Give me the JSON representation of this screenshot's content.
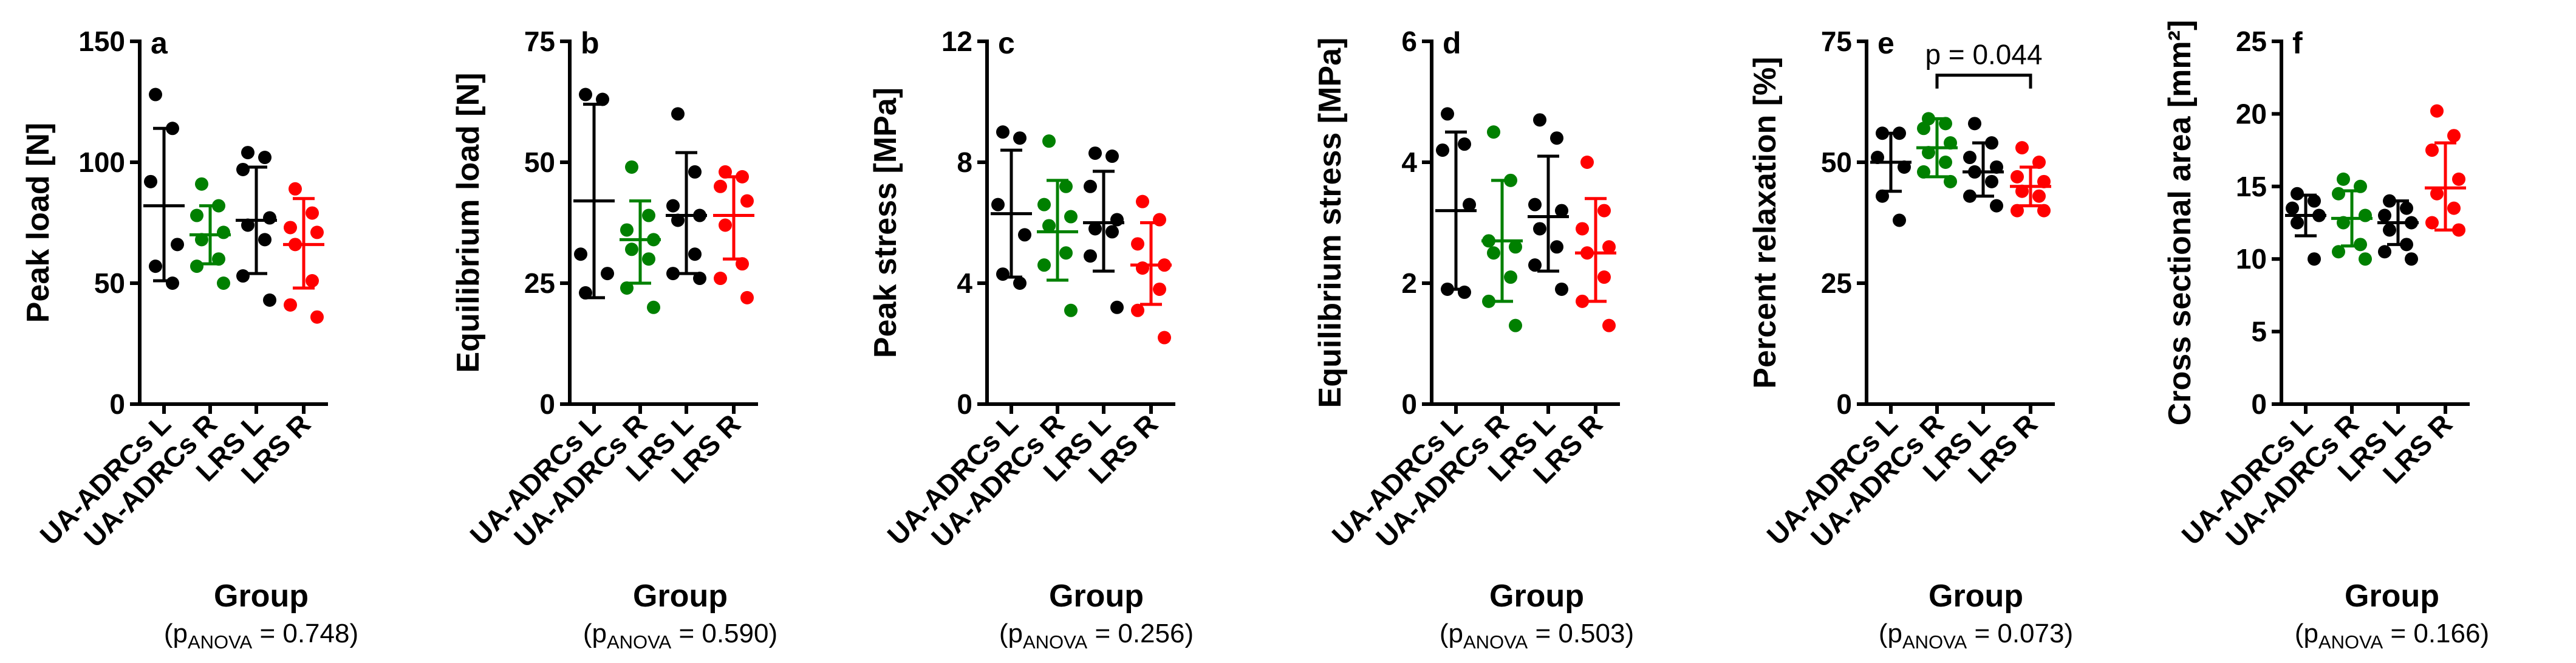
{
  "figure": {
    "group_xlabel": "Group",
    "anova_prefix": "(p",
    "anova_sub": "ANOVA",
    "colors": {
      "ua_adrcs_l": "#000000",
      "ua_adrcs_r": "#008000",
      "lrs_l": "#000000",
      "lrs_r": "#ff0000"
    }
  },
  "chart_data": [
    {
      "panel": "a",
      "type": "scatter",
      "ylabel": "Peak load [N]",
      "ylim": [
        0,
        150
      ],
      "yticks": [
        0,
        50,
        100,
        150
      ],
      "categories": [
        "UA-ADRCs L",
        "UA-ADRCs R",
        "LRS L",
        "LRS R"
      ],
      "anova": "= 0.748)",
      "series": [
        {
          "name": "UA-ADRCs L",
          "color": "#000000",
          "points": [
            128,
            114,
            92,
            66,
            57,
            50
          ],
          "mean": 82,
          "sd_low": 51,
          "sd_high": 114
        },
        {
          "name": "UA-ADRCs R",
          "color": "#008000",
          "points": [
            91,
            82,
            78,
            71,
            68,
            60,
            57,
            50
          ],
          "mean": 70,
          "sd_low": 58,
          "sd_high": 82
        },
        {
          "name": "LRS L",
          "color": "#000000",
          "points": [
            104,
            102,
            97,
            77,
            74,
            68,
            53,
            43
          ],
          "mean": 76,
          "sd_low": 54,
          "sd_high": 98
        },
        {
          "name": "LRS R",
          "color": "#ff0000",
          "points": [
            89,
            79,
            73,
            71,
            66,
            51,
            41,
            36
          ],
          "mean": 66,
          "sd_low": 48,
          "sd_high": 85
        }
      ]
    },
    {
      "panel": "b",
      "type": "scatter",
      "ylabel": "Equilibrium load [N]",
      "ylim": [
        0,
        75
      ],
      "yticks": [
        0,
        25,
        50,
        75
      ],
      "categories": [
        "UA-ADRCs L",
        "UA-ADRCs R",
        "LRS L",
        "LRS R"
      ],
      "anova": "= 0.590)",
      "series": [
        {
          "name": "UA-ADRCs L",
          "color": "#000000",
          "points": [
            64,
            63,
            31,
            27,
            23
          ],
          "mean": 42,
          "sd_low": 22,
          "sd_high": 62
        },
        {
          "name": "UA-ADRCs R",
          "color": "#008000",
          "points": [
            49,
            39,
            36,
            34,
            32,
            30,
            24,
            20
          ],
          "mean": 34,
          "sd_low": 25,
          "sd_high": 42
        },
        {
          "name": "LRS L",
          "color": "#000000",
          "points": [
            60,
            48,
            41,
            39,
            38,
            31,
            27,
            26
          ],
          "mean": 39,
          "sd_low": 27,
          "sd_high": 52
        },
        {
          "name": "LRS R",
          "color": "#ff0000",
          "points": [
            48,
            47,
            45,
            42,
            37,
            29,
            26,
            22
          ],
          "mean": 39,
          "sd_low": 30,
          "sd_high": 47
        }
      ]
    },
    {
      "panel": "c",
      "type": "scatter",
      "ylabel": "Peak stress [MPa]",
      "ylim": [
        0,
        12
      ],
      "yticks": [
        0,
        4,
        8,
        12
      ],
      "categories": [
        "UA-ADRCs L",
        "UA-ADRCs R",
        "LRS L",
        "LRS R"
      ],
      "anova": "= 0.256)",
      "series": [
        {
          "name": "UA-ADRCs L",
          "color": "#000000",
          "points": [
            9.0,
            8.8,
            6.6,
            5.6,
            4.3,
            4.0
          ],
          "mean": 6.3,
          "sd_low": 4.2,
          "sd_high": 8.4
        },
        {
          "name": "UA-ADRCs R",
          "color": "#008000",
          "points": [
            8.7,
            7.2,
            6.6,
            6.2,
            5.9,
            5.0,
            4.6,
            3.1
          ],
          "mean": 5.7,
          "sd_low": 4.1,
          "sd_high": 7.4
        },
        {
          "name": "LRS L",
          "color": "#000000",
          "points": [
            8.3,
            8.2,
            7.2,
            6.1,
            5.8,
            5.7,
            4.9,
            3.2
          ],
          "mean": 6.0,
          "sd_low": 4.4,
          "sd_high": 7.7
        },
        {
          "name": "LRS R",
          "color": "#ff0000",
          "points": [
            6.7,
            6.1,
            5.3,
            4.6,
            4.5,
            3.8,
            3.1,
            2.2
          ],
          "mean": 4.6,
          "sd_low": 3.3,
          "sd_high": 6.0
        }
      ]
    },
    {
      "panel": "d",
      "type": "scatter",
      "ylabel": "Equilibrium stress [MPa]",
      "ylim": [
        0,
        6
      ],
      "yticks": [
        0,
        2,
        4,
        6
      ],
      "categories": [
        "UA-ADRCs L",
        "UA-ADRCs R",
        "LRS L",
        "LRS R"
      ],
      "anova": "= 0.503)",
      "series": [
        {
          "name": "UA-ADRCs L",
          "color": "#000000",
          "points": [
            4.8,
            4.3,
            4.2,
            3.3,
            1.9,
            1.85
          ],
          "mean": 3.2,
          "sd_low": 1.9,
          "sd_high": 4.5
        },
        {
          "name": "UA-ADRCs R",
          "color": "#008000",
          "points": [
            4.5,
            3.7,
            2.7,
            2.6,
            2.5,
            2.1,
            1.7,
            1.3
          ],
          "mean": 2.7,
          "sd_low": 1.7,
          "sd_high": 3.7
        },
        {
          "name": "LRS L",
          "color": "#000000",
          "points": [
            4.7,
            4.4,
            3.3,
            3.2,
            2.9,
            2.6,
            2.3,
            1.9
          ],
          "mean": 3.1,
          "sd_low": 2.2,
          "sd_high": 4.1
        },
        {
          "name": "LRS R",
          "color": "#ff0000",
          "points": [
            4.0,
            3.2,
            2.9,
            2.6,
            2.5,
            2.1,
            1.7,
            1.3
          ],
          "mean": 2.5,
          "sd_low": 1.7,
          "sd_high": 3.4
        }
      ]
    },
    {
      "panel": "e",
      "type": "scatter",
      "ylabel": "Percent relaxation [%]",
      "ylim": [
        0,
        75
      ],
      "yticks": [
        0,
        25,
        50,
        75
      ],
      "categories": [
        "UA-ADRCs L",
        "UA-ADRCs R",
        "LRS L",
        "LRS R"
      ],
      "anova": "= 0.073)",
      "annotation": {
        "text": "p = 0.044",
        "from": 1,
        "to": 3,
        "y": 68
      },
      "series": [
        {
          "name": "UA-ADRCs L",
          "color": "#000000",
          "points": [
            56,
            56,
            51,
            49,
            43,
            38
          ],
          "mean": 50,
          "sd_low": 44,
          "sd_high": 56
        },
        {
          "name": "UA-ADRCs R",
          "color": "#008000",
          "points": [
            59,
            58,
            57,
            54,
            52,
            50,
            48,
            46
          ],
          "mean": 53,
          "sd_low": 47,
          "sd_high": 59
        },
        {
          "name": "LRS L",
          "color": "#000000",
          "points": [
            58,
            54,
            51,
            49,
            48,
            46,
            43,
            41
          ],
          "mean": 48,
          "sd_low": 43,
          "sd_high": 54
        },
        {
          "name": "LRS R",
          "color": "#ff0000",
          "points": [
            53,
            50,
            47,
            46,
            44,
            43,
            40,
            40
          ],
          "mean": 45,
          "sd_low": 41,
          "sd_high": 49
        }
      ]
    },
    {
      "panel": "f",
      "type": "scatter",
      "ylabel": "Cross sectional area [mm²]",
      "ylim": [
        0,
        25
      ],
      "yticks": [
        0,
        5,
        10,
        15,
        20,
        25
      ],
      "categories": [
        "UA-ADRCs L",
        "UA-ADRCs R",
        "LRS L",
        "LRS R"
      ],
      "anova": "= 0.166)",
      "series": [
        {
          "name": "UA-ADRCs L",
          "color": "#000000",
          "points": [
            14.5,
            14.0,
            13.5,
            13.0,
            12.5,
            10.0
          ],
          "mean": 13.0,
          "sd_low": 11.6,
          "sd_high": 14.4
        },
        {
          "name": "UA-ADRCs R",
          "color": "#008000",
          "points": [
            15.5,
            15.0,
            14.5,
            13.0,
            12.5,
            11.0,
            10.5,
            10.0
          ],
          "mean": 12.8,
          "sd_low": 10.9,
          "sd_high": 14.7
        },
        {
          "name": "LRS L",
          "color": "#000000",
          "points": [
            14.0,
            13.5,
            13.0,
            12.5,
            12.0,
            11.0,
            10.5,
            10.0
          ],
          "mean": 12.5,
          "sd_low": 11.0,
          "sd_high": 14.0
        },
        {
          "name": "LRS R",
          "color": "#ff0000",
          "points": [
            20.2,
            18.5,
            17.5,
            15.5,
            14.5,
            13.5,
            12.5,
            12.0
          ],
          "mean": 14.9,
          "sd_low": 12.0,
          "sd_high": 18.0
        }
      ]
    }
  ]
}
